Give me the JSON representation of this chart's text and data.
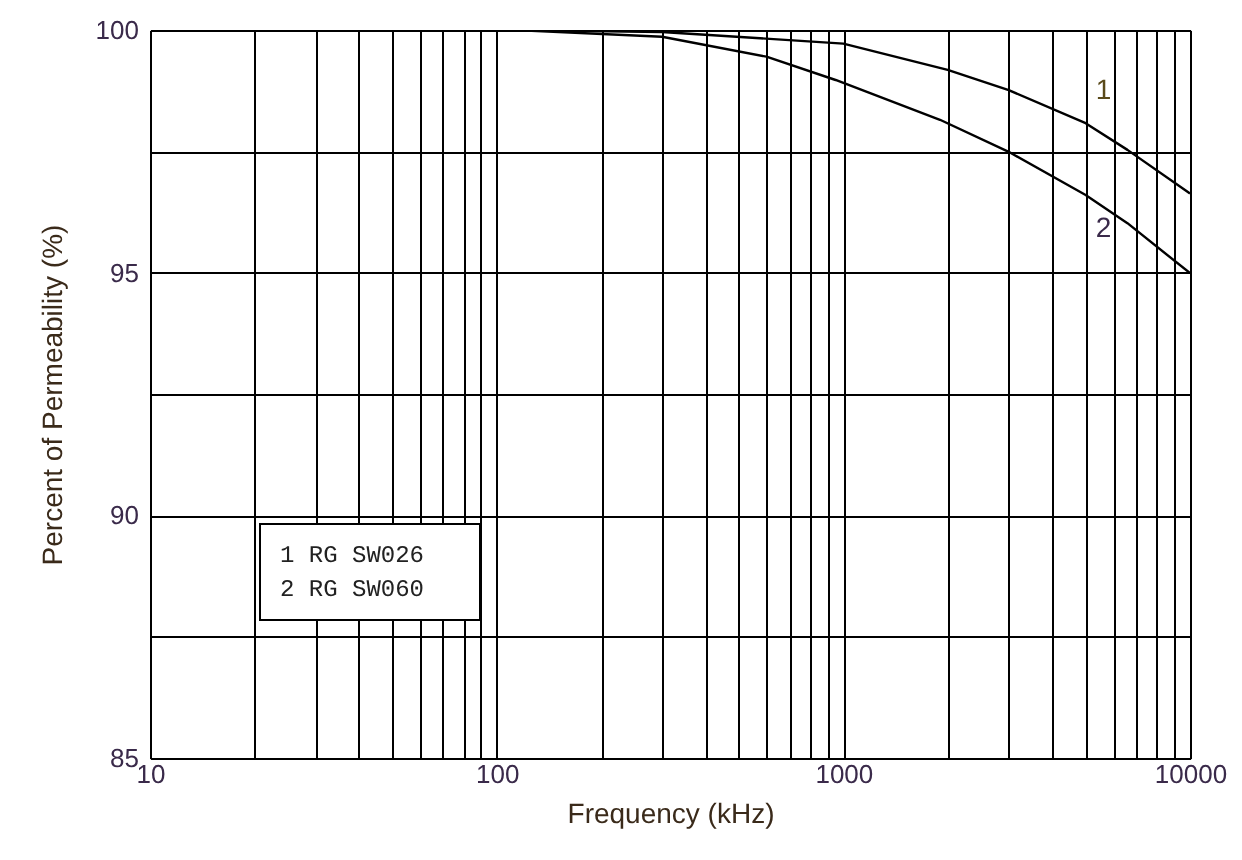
{
  "chart_data": {
    "type": "line",
    "xlabel": "Frequency (kHz)",
    "ylabel": "Percent of Permeability (%)",
    "log": "x",
    "grid": true,
    "marker": "none",
    "line_style": "solid",
    "xlim": [
      10,
      10000
    ],
    "ylim": [
      85,
      100
    ],
    "xticks": [
      10,
      {
        "value": 20,
        "label": null
      },
      {
        "value": 30,
        "label": null
      },
      {
        "value": 40,
        "label": null
      },
      {
        "value": 50,
        "label": null
      },
      {
        "value": 60,
        "label": null
      },
      {
        "value": 70,
        "label": null
      },
      {
        "value": 80,
        "label": null
      },
      {
        "value": 90,
        "label": null
      },
      100,
      {
        "value": 200,
        "label": null
      },
      {
        "value": 300,
        "label": null
      },
      {
        "value": 400,
        "label": null
      },
      {
        "value": 500,
        "label": null
      },
      {
        "value": 600,
        "label": null
      },
      {
        "value": 700,
        "label": null
      },
      {
        "value": 800,
        "label": null
      },
      {
        "value": 900,
        "label": null
      },
      1000,
      {
        "value": 2000,
        "label": null
      },
      {
        "value": 3000,
        "label": null
      },
      {
        "value": 4000,
        "label": null
      },
      {
        "value": 5000,
        "label": null
      },
      {
        "value": 6000,
        "label": null
      },
      {
        "value": 7000,
        "label": null
      },
      {
        "value": 8000,
        "label": null
      },
      {
        "value": 9000,
        "label": null
      },
      10000
    ],
    "yticks": [
      85,
      {
        "value": 87.5,
        "label": null
      },
      90,
      {
        "value": 92.5,
        "label": null
      },
      95,
      {
        "value": 97.5,
        "label": null
      },
      100
    ],
    "series": [
      {
        "name": "1",
        "color": "#000000",
        "x": [
          113,
          300,
          1000,
          2000,
          3000,
          5000,
          6600,
          10000
        ],
        "values": [
          100,
          99.96,
          99.72,
          99.18,
          98.76,
          98.08,
          97.53,
          96.63
        ]
      },
      {
        "name": "2",
        "color": "#000000",
        "x": [
          113,
          300,
          600,
          950,
          1900,
          3000,
          5000,
          6600,
          10000
        ],
        "values": [
          100,
          99.86,
          99.45,
          98.97,
          98.15,
          97.49,
          96.6,
          96.02,
          94.99
        ]
      }
    ],
    "annotations": [
      "1 RG SW026",
      "2 RG SW060"
    ]
  }
}
